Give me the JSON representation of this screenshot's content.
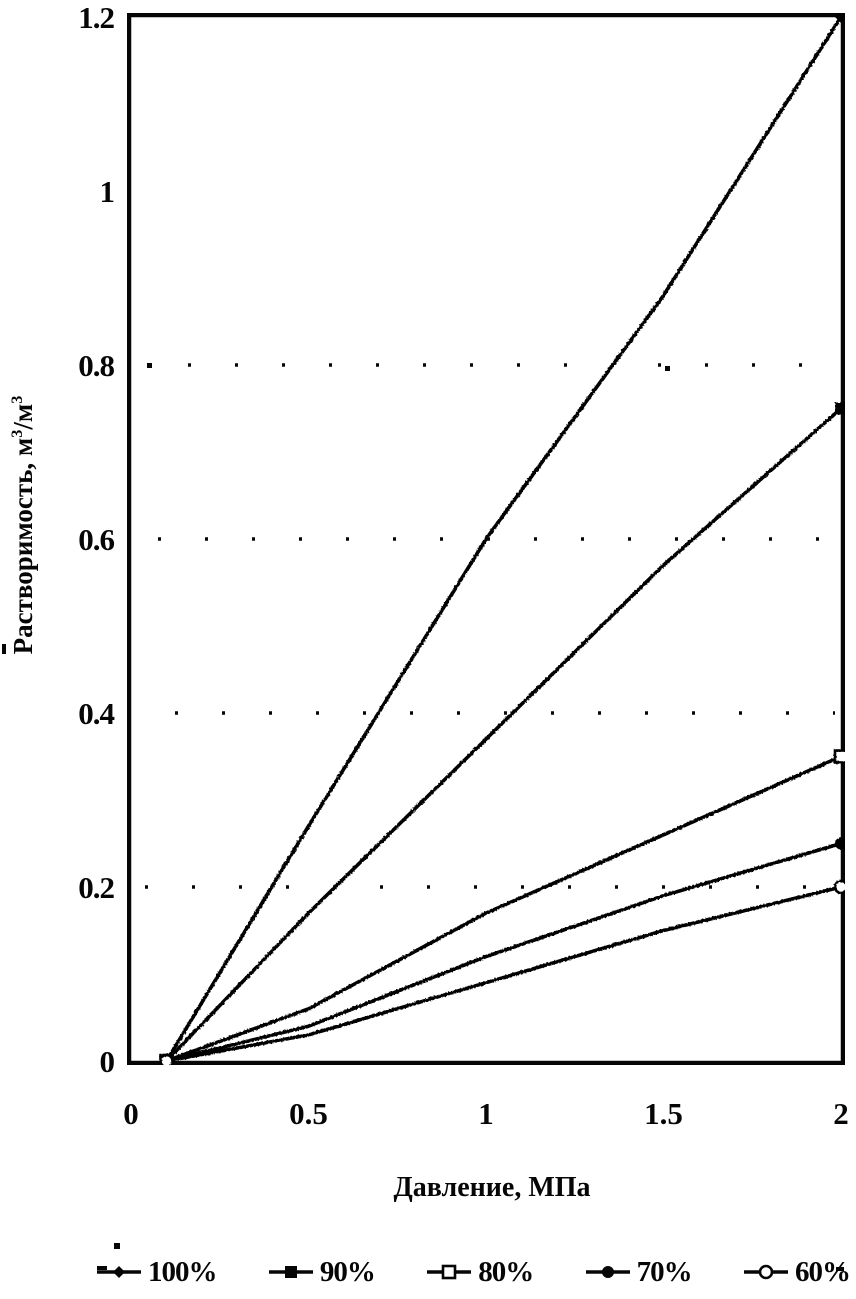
{
  "figure": {
    "background": "#ffffff",
    "ink": "#060606"
  },
  "chart_data": {
    "type": "line",
    "title": "",
    "xlabel": "Давление, МПа",
    "ylabel": "Растворимость, м³/м³",
    "xlim": [
      0,
      2
    ],
    "ylim": [
      0,
      1.2
    ],
    "x_ticks": [
      {
        "value": 0,
        "label": "0"
      },
      {
        "value": 0.5,
        "label": "0.5"
      },
      {
        "value": 1,
        "label": "1"
      },
      {
        "value": 1.5,
        "label": "1.5"
      },
      {
        "value": 2,
        "label": "2"
      }
    ],
    "y_ticks": [
      {
        "value": 0,
        "label": "0"
      },
      {
        "value": 0.2,
        "label": "0.2"
      },
      {
        "value": 0.4,
        "label": "0.4"
      },
      {
        "value": 0.6,
        "label": "0.6"
      },
      {
        "value": 0.8,
        "label": "0.8"
      },
      {
        "value": 1,
        "label": "1"
      },
      {
        "value": 1.2,
        "label": "1.2"
      }
    ],
    "grid_y_values": [
      0.2,
      0.4,
      0.6,
      0.8
    ],
    "grid_style": "sparse-dotted",
    "x": [
      0.1,
      0.5,
      1.0,
      1.5,
      2.0
    ],
    "series": [
      {
        "name": "100%",
        "marker": "filled-diamond",
        "values": [
          0,
          0.27,
          0.6,
          0.88,
          1.2
        ]
      },
      {
        "name": "90%",
        "marker": "filled-square",
        "values": [
          0,
          0.17,
          0.37,
          0.57,
          0.75
        ]
      },
      {
        "name": "80%",
        "marker": "open-square",
        "values": [
          0,
          0.06,
          0.17,
          0.26,
          0.35
        ]
      },
      {
        "name": "70%",
        "marker": "filled-circle",
        "values": [
          0,
          0.04,
          0.12,
          0.19,
          0.25
        ]
      },
      {
        "name": "60%",
        "marker": "open-circle",
        "values": [
          0,
          0.03,
          0.09,
          0.15,
          0.2
        ]
      }
    ],
    "legend_position": "bottom"
  }
}
